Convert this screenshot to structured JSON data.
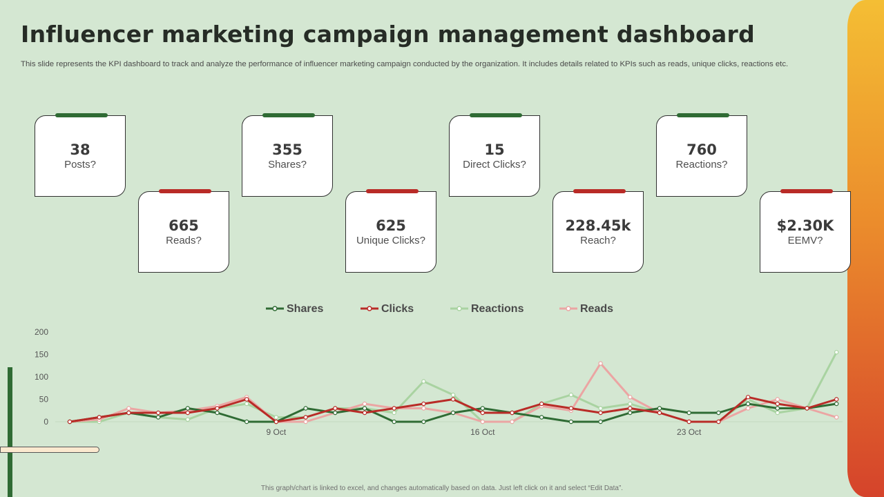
{
  "header": {
    "title": "Influencer marketing campaign management dashboard",
    "subtitle": "This slide represents the KPI dashboard to track and analyze the performance of influencer marketing campaign conducted by the organization. It includes details related to KPIs such as reads, unique clicks, reactions etc."
  },
  "kpis": [
    {
      "value": "38",
      "label": "Posts?"
    },
    {
      "value": "665",
      "label": "Reads?"
    },
    {
      "value": "355",
      "label": "Shares?"
    },
    {
      "value": "625",
      "label": "Unique Clicks?"
    },
    {
      "value": "15",
      "label": "Direct Clicks?"
    },
    {
      "value": "228.45k",
      "label": "Reach?"
    },
    {
      "value": "760",
      "label": "Reactions?"
    },
    {
      "value": "$2.30K",
      "label": "EEMV?"
    }
  ],
  "colors": {
    "background": "#d4e7d2",
    "kpi_tab_green": "#2f6b34",
    "kpi_tab_red": "#b92b27",
    "shares": "#2f6b34",
    "clicks": "#b92b27",
    "reactions": "#a9d3a1",
    "reads": "#eba5a3"
  },
  "footnote": "This graph/chart is linked to excel, and changes automatically based on data. Just left click on it and select “Edit Data”.",
  "chart_data": {
    "type": "line",
    "x": [
      "2 Oct",
      "3 Oct",
      "4 Oct",
      "5 Oct",
      "6 Oct",
      "7 Oct",
      "8 Oct",
      "9 Oct",
      "10 Oct",
      "11 Oct",
      "12 Oct",
      "13 Oct",
      "14 Oct",
      "15 Oct",
      "16 Oct",
      "17 Oct",
      "18 Oct",
      "19 Oct",
      "20 Oct",
      "21 Oct",
      "22 Oct",
      "23 Oct",
      "24 Oct",
      "25 Oct",
      "26 Oct",
      "27 Oct",
      "28 Oct",
      "29 Oct"
    ],
    "x_tick_labels": [
      "9 Oct",
      "16 Oct",
      "23 Oct"
    ],
    "ylim": [
      0,
      200
    ],
    "y_ticks": [
      0,
      50,
      100,
      150,
      200
    ],
    "grid": false,
    "legend_position": "top",
    "series": [
      {
        "name": "Shares",
        "color": "#2f6b34",
        "values": [
          0,
          10,
          20,
          10,
          30,
          20,
          0,
          0,
          30,
          20,
          30,
          0,
          0,
          20,
          30,
          20,
          10,
          0,
          0,
          20,
          30,
          20,
          20,
          40,
          30,
          30,
          40,
          null
        ]
      },
      {
        "name": "Clicks",
        "color": "#b92b27",
        "values": [
          0,
          10,
          20,
          20,
          20,
          30,
          50,
          0,
          10,
          30,
          20,
          30,
          40,
          50,
          20,
          20,
          40,
          30,
          20,
          30,
          20,
          0,
          0,
          55,
          40,
          30,
          50,
          null
        ]
      },
      {
        "name": "Reactions",
        "color": "#a9d3a1",
        "values": [
          0,
          0,
          20,
          10,
          5,
          30,
          40,
          10,
          10,
          30,
          30,
          20,
          90,
          60,
          0,
          0,
          40,
          60,
          30,
          40,
          20,
          0,
          0,
          50,
          20,
          30,
          155,
          null
        ]
      },
      {
        "name": "Reads",
        "color": "#eba5a3",
        "values": [
          0,
          5,
          30,
          20,
          25,
          35,
          55,
          0,
          0,
          20,
          40,
          30,
          30,
          20,
          0,
          0,
          35,
          25,
          130,
          55,
          20,
          0,
          0,
          30,
          50,
          30,
          10,
          null
        ]
      }
    ]
  }
}
